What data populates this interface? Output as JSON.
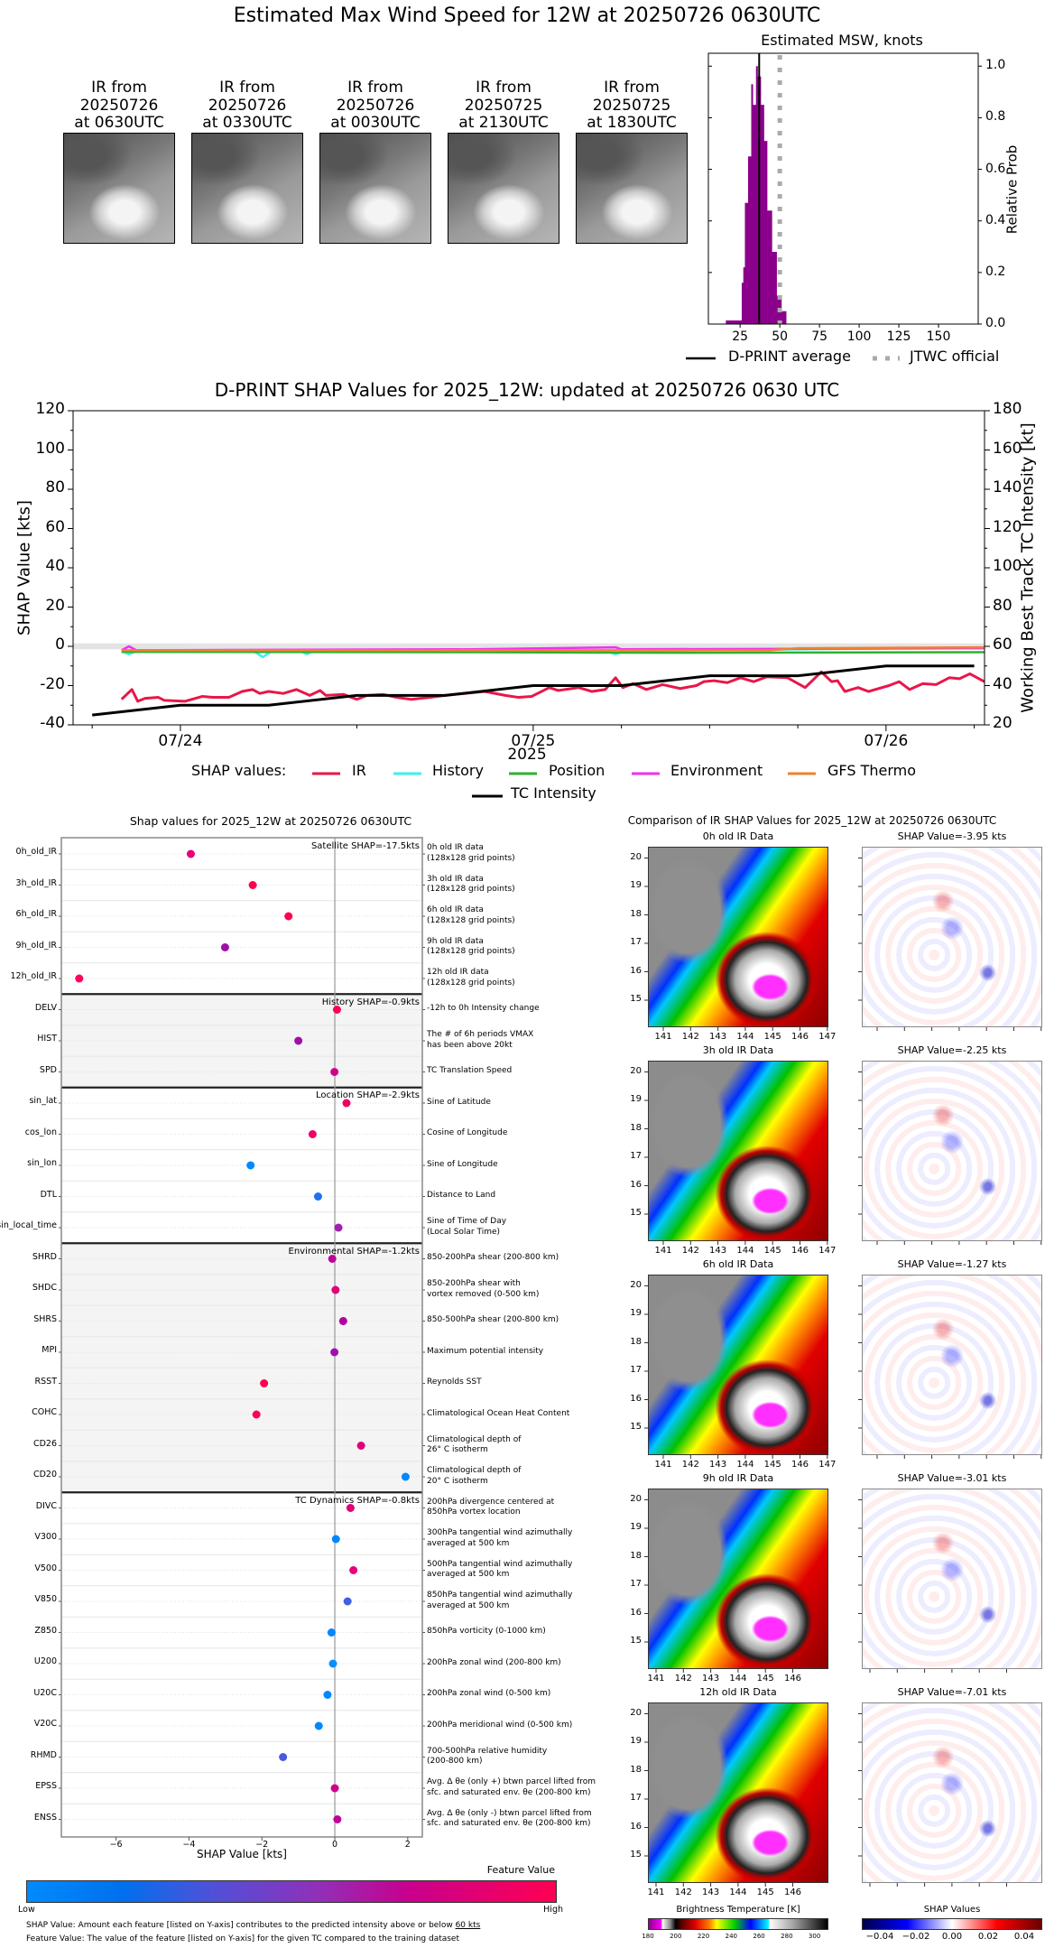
{
  "title": "Estimated Max Wind Speed for 12W at 20250726 0630UTC",
  "ir_thumbnails": [
    {
      "lines": "IR from\n20250726\nat 0630UTC"
    },
    {
      "lines": "IR from\n20250726\nat 0330UTC"
    },
    {
      "lines": "IR from\n20250726\nat 0030UTC"
    },
    {
      "lines": "IR from\n20250725\nat 2130UTC"
    },
    {
      "lines": "IR from\n20250725\nat 1830UTC"
    }
  ],
  "chart_data": [
    {
      "type": "bar",
      "title": "Estimated MSW, knots",
      "ylabel": "Relative Prob",
      "xlim": [
        5,
        175
      ],
      "ylim": [
        0,
        1.05
      ],
      "xticks": [
        25,
        50,
        75,
        100,
        125,
        150
      ],
      "yticks": [
        0.0,
        0.2,
        0.4,
        0.6,
        0.8,
        1.0
      ],
      "ytick_labels": [
        "0.0",
        "0.2",
        "0.4",
        "0.6",
        "0.8",
        "1.0"
      ],
      "bins": [
        [
          16,
          26,
          0.014
        ],
        [
          26,
          27,
          0.16
        ],
        [
          27,
          28,
          0.22
        ],
        [
          28,
          30,
          0.47
        ],
        [
          30,
          32,
          0.65
        ],
        [
          32,
          33,
          0.93
        ],
        [
          33,
          35,
          0.85
        ],
        [
          35,
          36,
          1.0
        ],
        [
          36,
          38,
          0.96
        ],
        [
          38,
          40,
          0.85
        ],
        [
          40,
          42,
          0.71
        ],
        [
          42,
          45,
          0.44
        ],
        [
          45,
          48,
          0.28
        ],
        [
          48,
          51,
          0.11
        ],
        [
          51,
          54,
          0.05
        ]
      ],
      "bar_color": "#8b008b",
      "dprint_average": 37,
      "jtwc_official": 50,
      "legend": [
        {
          "label": "D-PRINT average",
          "color": "#000000"
        },
        {
          "label": "JTWC official",
          "color": "#aaaaaa"
        }
      ]
    },
    {
      "type": "line",
      "title": "D-PRINT SHAP Values for 2025_12W: updated at 20250726 0630 UTC",
      "xlabel": "2025",
      "ylabel": "SHAP Value [kts]",
      "ylabel_right": "Working Best Track TC Intensity [kt]",
      "x_units": "hours since 07/24 00UTC",
      "xlim": [
        -7.3,
        54.7
      ],
      "ylim": [
        -40,
        120
      ],
      "ylim_right": [
        20,
        180
      ],
      "xticks": [
        {
          "x": 0,
          "label": "07/24"
        },
        {
          "x": 24,
          "label": "07/25"
        },
        {
          "x": 48,
          "label": "07/26"
        }
      ],
      "yticks": [
        "-40",
        "-20",
        "0",
        "20",
        "40",
        "60",
        "80",
        "100",
        "120"
      ],
      "yticks_right": [
        "20",
        "40",
        "60",
        "80",
        "100",
        "120",
        "140",
        "160",
        "180"
      ],
      "legend_title": "SHAP values:",
      "series": [
        {
          "name": "IR",
          "color": "#e8174a",
          "x": [
            -4.0,
            -3.3,
            -2.9,
            -2.4,
            -1.5,
            -1.1,
            0.3,
            1.5,
            2.2,
            3.3,
            4.2,
            4.9,
            5.4,
            6.0,
            7.0,
            7.9,
            8.8,
            9.5,
            9.9,
            11.1,
            12.0,
            12.7,
            13.8,
            14.7,
            15.7,
            17.0,
            18.0,
            19.3,
            20.7,
            22.1,
            23.0,
            23.9,
            25.1,
            25.7,
            27.1,
            28.0,
            28.9,
            29.6,
            30.1,
            30.8,
            31.7,
            32.8,
            34.0,
            35.1,
            35.6,
            36.3,
            37.2,
            38.1,
            39.0,
            39.9,
            41.3,
            42.5,
            43.6,
            44.3,
            44.7,
            45.2,
            46.1,
            46.8,
            48.2,
            48.9,
            49.6,
            50.5,
            51.4,
            52.3,
            53.0,
            53.7,
            54.7
          ],
          "y": [
            -27,
            -22,
            -28,
            -26.5,
            -26,
            -27.5,
            -28,
            -25.5,
            -26,
            -26,
            -23,
            -22,
            -24,
            -23,
            -24,
            -22,
            -25,
            -22.5,
            -25,
            -24.5,
            -27,
            -25,
            -24.5,
            -26,
            -27,
            -26,
            -25,
            -24,
            -23,
            -25,
            -26,
            -25.5,
            -21,
            -22.5,
            -21,
            -23,
            -22,
            -16,
            -21,
            -19,
            -22,
            -19.5,
            -21.5,
            -20,
            -18,
            -17.5,
            -18.5,
            -16,
            -18,
            -15.5,
            -16,
            -21,
            -13,
            -18,
            -17.5,
            -23,
            -21,
            -23,
            -20,
            -18,
            -22,
            -19,
            -19.5,
            -16,
            -16.5,
            -14,
            -18
          ]
        },
        {
          "name": "History",
          "color": "#40eeee",
          "x": [
            -4,
            -3.5,
            -3,
            5,
            5.6,
            6.2,
            8.2,
            8.6,
            9,
            29,
            29.6,
            30.2,
            54.7
          ],
          "y": [
            -2.5,
            -4,
            -2.5,
            -2.5,
            -5.5,
            -2.5,
            -2.5,
            -4,
            -2.5,
            -2.5,
            -4,
            -2.5,
            -0.5
          ]
        },
        {
          "name": "Position",
          "color": "#30b030",
          "x": [
            -4,
            20,
            35,
            54.7
          ],
          "y": [
            -2.8,
            -3,
            -3.3,
            -3
          ]
        },
        {
          "name": "Environment",
          "color": "#f030f0",
          "x": [
            -4,
            -3.5,
            -3,
            20,
            29.6,
            30,
            54.7
          ],
          "y": [
            -2,
            0,
            -2,
            -1.5,
            -0.5,
            -1.5,
            -1
          ]
        },
        {
          "name": "GFS Thermo",
          "color": "#f08030",
          "x": [
            -4,
            40,
            42,
            54.7
          ],
          "y": [
            -2,
            -2,
            -1,
            -0.5
          ]
        }
      ],
      "tc_intensity": {
        "name": "TC Intensity",
        "color": "#000000",
        "x": [
          -6,
          0,
          6,
          12,
          18,
          24,
          30,
          36,
          42,
          48,
          54
        ],
        "y_kt": [
          25,
          30,
          30,
          35,
          35,
          40,
          40,
          45,
          45,
          50,
          50
        ]
      }
    },
    {
      "type": "scatter",
      "title": "Shap values for 2025_12W at 20250726 0630UTC",
      "xlabel": "SHAP Value [kts]",
      "xlim": [
        -7.5,
        2.4
      ],
      "xticks": [
        {
          "x": -6,
          "label": "−6"
        },
        {
          "x": -4,
          "label": "−4"
        },
        {
          "x": -2,
          "label": "−2"
        },
        {
          "x": 0,
          "label": "0"
        },
        {
          "x": 2,
          "label": "2"
        }
      ],
      "groups": [
        {
          "label": "Satellite SHAP=-17.5kts",
          "shaded": false,
          "features": [
            {
              "name": "0h_old_IR",
              "desc": "0h old IR data\n(128x128 grid points)",
              "value": -3.95,
              "color": "#e8007a"
            },
            {
              "name": "3h_old_IR",
              "desc": "3h old IR data\n(128x128 grid points)",
              "value": -2.25,
              "color": "#ff0050"
            },
            {
              "name": "6h_old_IR",
              "desc": "6h old IR data\n(128x128 grid points)",
              "value": -1.27,
              "color": "#ff0050"
            },
            {
              "name": "9h_old_IR",
              "desc": "9h old IR data\n(128x128 grid points)",
              "value": -3.01,
              "color": "#a010a8"
            },
            {
              "name": "12h_old_IR",
              "desc": "12h old IR data\n(128x128 grid points)",
              "value": -7.01,
              "color": "#ff0060"
            }
          ]
        },
        {
          "label": "History SHAP=-0.9kts",
          "shaded": true,
          "features": [
            {
              "name": "DELV",
              "desc": "-12h to 0h Intensity change",
              "value": 0.06,
              "color": "#ff0050"
            },
            {
              "name": "HIST",
              "desc": "The # of 6h periods VMAX\nhas been above 20kt",
              "value": -1.0,
              "color": "#a010a8"
            },
            {
              "name": "SPD",
              "desc": "TC Translation Speed",
              "value": -0.01,
              "color": "#d0008a"
            }
          ]
        },
        {
          "label": "Location SHAP=-2.9kts",
          "shaded": false,
          "features": [
            {
              "name": "sin_lat",
              "desc": "Sine of Latitude",
              "value": 0.32,
              "color": "#f00060"
            },
            {
              "name": "cos_lon",
              "desc": "Cosine of Longitude",
              "value": -0.61,
              "color": "#f00068"
            },
            {
              "name": "sin_lon",
              "desc": "Sine of Longitude",
              "value": -2.31,
              "color": "#0088ff"
            },
            {
              "name": "DTL",
              "desc": "Distance to Land",
              "value": -0.46,
              "color": "#2070f0"
            },
            {
              "name": "sin_local_time",
              "desc": "Sine of Time of Day\n(Local Solar Time)",
              "value": 0.1,
              "color": "#a020b0"
            }
          ]
        },
        {
          "label": "Environmental SHAP=-1.2kts",
          "shaded": true,
          "features": [
            {
              "name": "SHRD",
              "desc": "850-200hPa shear (200-800 km)",
              "value": -0.07,
              "color": "#c0009a"
            },
            {
              "name": "SHDC",
              "desc": "850-200hPa shear with\nvortex removed (0-500 km)",
              "value": 0.02,
              "color": "#e0007a"
            },
            {
              "name": "SHRS",
              "desc": "850-500hPa shear (200-800 km)",
              "value": 0.23,
              "color": "#b000a0"
            },
            {
              "name": "MPI",
              "desc": "Maximum potential intensity",
              "value": -0.01,
              "color": "#a010b0"
            },
            {
              "name": "RSST",
              "desc": "Reynolds SST",
              "value": -1.94,
              "color": "#ff0050"
            },
            {
              "name": "COHC",
              "desc": "Climatological Ocean Heat Content",
              "value": -2.15,
              "color": "#ff0050"
            },
            {
              "name": "CD26",
              "desc": "Climatological depth of\n26° C isotherm",
              "value": 0.72,
              "color": "#e0007a"
            },
            {
              "name": "CD20",
              "desc": "Climatological depth of\n20° C isotherm",
              "value": 1.94,
              "color": "#0088ff"
            }
          ]
        },
        {
          "label": "TC Dynamics SHAP=-0.8kts",
          "shaded": false,
          "features": [
            {
              "name": "DIVC",
              "desc": "200hPa divergence centered at\n850hPa vortex location",
              "value": 0.43,
              "color": "#e0007a"
            },
            {
              "name": "V300",
              "desc": "300hPa tangential wind azimuthally\naveraged at 500 km",
              "value": 0.03,
              "color": "#0088ff"
            },
            {
              "name": "V500",
              "desc": "500hPa tangential wind azimuthally\naveraged at 500 km",
              "value": 0.51,
              "color": "#e8007a"
            },
            {
              "name": "V850",
              "desc": "850hPa tangential wind azimuthally\naveraged at 500 km",
              "value": 0.35,
              "color": "#4060e0"
            },
            {
              "name": "Z850",
              "desc": "850hPa vorticity (0-1000 km)",
              "value": -0.09,
              "color": "#0088ff"
            },
            {
              "name": "U200",
              "desc": "200hPa zonal wind (200-800 km)",
              "value": -0.05,
              "color": "#0090ff"
            },
            {
              "name": "U20C",
              "desc": "200hPa zonal wind (0-500 km)",
              "value": -0.2,
              "color": "#0088ff"
            },
            {
              "name": "V20C",
              "desc": "200hPa meridional wind (0-500 km)",
              "value": -0.44,
              "color": "#0088ff"
            },
            {
              "name": "RHMD",
              "desc": "700-500hPa relative humidity\n(200-800 km)",
              "value": -1.42,
              "color": "#4a5ae0"
            },
            {
              "name": "EPSS",
              "desc": "Avg. Δ θe (only +) btwn parcel lifted from\nsfc. and saturated env. θe (200-800 km)",
              "value": 0.0,
              "color": "#d0008a"
            },
            {
              "name": "ENSS",
              "desc": "Avg. Δ θe (only -) btwn parcel lifted from\nsfc. and saturated env. θe (200-800 km)",
              "value": 0.07,
              "color": "#c0009a"
            }
          ]
        }
      ]
    }
  ],
  "feature_colorbar": {
    "title": "Feature Value",
    "low": "Low",
    "high": "High"
  },
  "footnotes": {
    "shap_prefix": "SHAP Value: Amount each feature [listed on Y-axis] contributes to the predicted intensity above or below ",
    "shap_threshold": "60 kts",
    "feature": "Feature Value: The value of the feature [listed on Y-axis] for the given TC compared to the training dataset"
  },
  "ir_comparison": {
    "title": "Comparison of IR SHAP Values for 2025_12W at 20250726 0630UTC",
    "rows": [
      {
        "ir_title": "0h old IR Data",
        "shap_title": "SHAP Value=-3.95 kts",
        "lon_ticks": [
          "141",
          "142",
          "143",
          "144",
          "145",
          "146",
          "147"
        ]
      },
      {
        "ir_title": "3h old IR Data",
        "shap_title": "SHAP Value=-2.25 kts",
        "lon_ticks": [
          "141",
          "142",
          "143",
          "144",
          "145",
          "146",
          "147"
        ]
      },
      {
        "ir_title": "6h old IR Data",
        "shap_title": "SHAP Value=-1.27 kts",
        "lon_ticks": [
          "141",
          "142",
          "143",
          "144",
          "145",
          "146",
          "147"
        ]
      },
      {
        "ir_title": "9h old IR Data",
        "shap_title": "SHAP Value=-3.01 kts",
        "lon_ticks": [
          "141",
          "142",
          "143",
          "144",
          "145",
          "146"
        ]
      },
      {
        "ir_title": "12h old IR Data",
        "shap_title": "SHAP Value=-7.01 kts",
        "lon_ticks": [
          "141",
          "142",
          "143",
          "144",
          "145",
          "146"
        ]
      }
    ],
    "lat_ticks": [
      "15",
      "16",
      "17",
      "18",
      "19",
      "20"
    ],
    "bt_colorbar": {
      "title": "Brightness Temperature [K]",
      "ticks": [
        "180",
        "200",
        "220",
        "240",
        "260",
        "280",
        "300"
      ]
    },
    "shap_colorbar": {
      "title": "SHAP Values",
      "ticks": [
        "−0.04",
        "−0.02",
        "0.00",
        "0.02",
        "0.04"
      ]
    }
  }
}
